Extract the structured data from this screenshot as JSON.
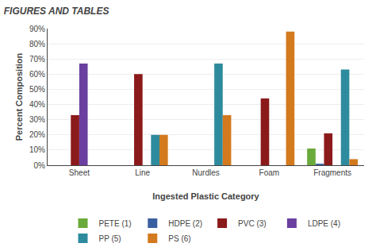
{
  "chart_data": {
    "type": "bar",
    "title": "FIGURES AND TABLES",
    "xlabel": "Ingested Plastic Category",
    "ylabel": "Percent Composition",
    "categories": [
      "Sheet",
      "Line",
      "Nurdles",
      "Foam",
      "Fragments"
    ],
    "series": [
      {
        "name": "PETE (1)",
        "color": "#6aaa3a",
        "values": [
          0,
          0,
          0,
          0,
          11
        ]
      },
      {
        "name": "HDPE (2)",
        "color": "#3a5fa0",
        "values": [
          0,
          0,
          0,
          0,
          1
        ]
      },
      {
        "name": "PVC (3)",
        "color": "#8b1a1a",
        "values": [
          33,
          60,
          0,
          44,
          21
        ]
      },
      {
        "name": "LDPE (4)",
        "color": "#6b3fa0",
        "values": [
          67,
          0,
          0,
          0,
          0
        ]
      },
      {
        "name": "PP (5)",
        "color": "#2e8b9e",
        "values": [
          0,
          20,
          67,
          0,
          63
        ]
      },
      {
        "name": "PS (6)",
        "color": "#d47a1e",
        "values": [
          0,
          20,
          33,
          88,
          4
        ]
      }
    ],
    "ylim": [
      0,
      90
    ],
    "yticks": [
      {
        "value": 0,
        "label": "0%"
      },
      {
        "value": 10,
        "label": "10%"
      },
      {
        "value": 20,
        "label": "20%"
      },
      {
        "value": 30,
        "label": "30%"
      },
      {
        "value": 40,
        "label": "40%"
      },
      {
        "value": 50,
        "label": "50%"
      },
      {
        "value": 60,
        "label": "60%"
      },
      {
        "value": 70,
        "label": "70%"
      },
      {
        "value": 80,
        "label": "80%"
      },
      {
        "value": 90,
        "label": "90%"
      }
    ],
    "grid": true,
    "legend": "bottom"
  }
}
